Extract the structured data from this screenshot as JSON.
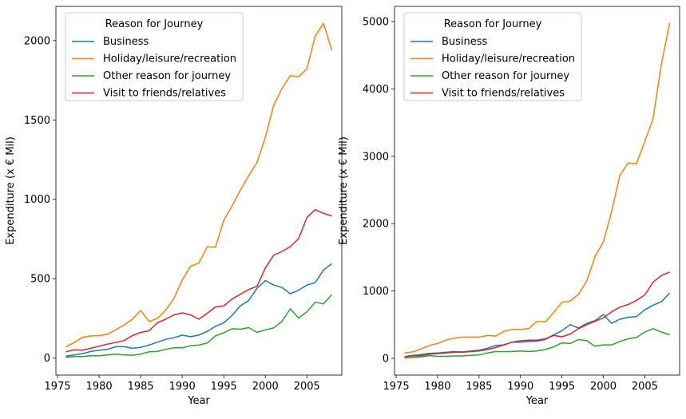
{
  "chart_data": [
    {
      "type": "line",
      "xlabel": "Year",
      "ylabel": "Expenditure (x € Mil)",
      "xlim": [
        1974.8,
        2009.2
      ],
      "ylim": [
        -107,
        2215
      ],
      "xticks": [
        1975,
        1980,
        1985,
        1990,
        1995,
        2000,
        2005
      ],
      "yticks": [
        0,
        500,
        1000,
        1500,
        2000
      ],
      "legend": {
        "title": "Reason for Journey",
        "position": "top-left"
      },
      "x": [
        1976,
        1977,
        1978,
        1979,
        1980,
        1981,
        1982,
        1983,
        1984,
        1985,
        1986,
        1987,
        1988,
        1989,
        1990,
        1991,
        1992,
        1993,
        1994,
        1995,
        1996,
        1997,
        1998,
        1999,
        2000,
        2001,
        2002,
        2003,
        2004,
        2005,
        2006,
        2007,
        2008
      ],
      "series": [
        {
          "name": "Business",
          "color": "#1f77b4",
          "values": [
            12,
            20,
            28,
            42,
            50,
            55,
            72,
            72,
            62,
            68,
            82,
            100,
            118,
            128,
            145,
            135,
            145,
            168,
            200,
            222,
            268,
            330,
            362,
            440,
            488,
            460,
            445,
            405,
            428,
            460,
            475,
            555,
            595
          ]
        },
        {
          "name": "Holiday/leisure/recreation",
          "color": "#ff7f0e",
          "values": [
            70,
            98,
            130,
            140,
            142,
            150,
            178,
            208,
            245,
            300,
            230,
            250,
            302,
            375,
            492,
            578,
            598,
            700,
            698,
            868,
            958,
            1058,
            1148,
            1232,
            1392,
            1592,
            1698,
            1778,
            1772,
            1822,
            2028,
            2108,
            1938
          ]
        },
        {
          "name": "Other reason for journey",
          "color": "#2ca02c",
          "values": [
            5,
            10,
            10,
            15,
            15,
            20,
            25,
            20,
            18,
            25,
            40,
            42,
            55,
            65,
            65,
            78,
            82,
            95,
            140,
            160,
            185,
            182,
            192,
            162,
            178,
            190,
            232,
            310,
            252,
            292,
            352,
            342,
            400
          ]
        },
        {
          "name": "Visit to friends/relatives",
          "color": "#d62728",
          "values": [
            40,
            52,
            50,
            62,
            75,
            88,
            98,
            110,
            142,
            162,
            172,
            222,
            245,
            272,
            285,
            272,
            245,
            282,
            322,
            328,
            372,
            402,
            432,
            452,
            568,
            648,
            672,
            702,
            752,
            885,
            935,
            912,
            895
          ]
        }
      ]
    },
    {
      "type": "line",
      "xlabel": "Year",
      "ylabel": "Expenditure (x € Mil)",
      "xlim": [
        1974.8,
        2009.2
      ],
      "ylim": [
        -249,
        5225
      ],
      "xticks": [
        1975,
        1980,
        1985,
        1990,
        1995,
        2000,
        2005
      ],
      "yticks": [
        0,
        1000,
        2000,
        3000,
        4000,
        5000
      ],
      "legend": {
        "title": "Reason for Journey",
        "position": "top-left"
      },
      "x": [
        1976,
        1977,
        1978,
        1979,
        1980,
        1981,
        1982,
        1983,
        1984,
        1985,
        1986,
        1987,
        1988,
        1989,
        1990,
        1991,
        1992,
        1993,
        1994,
        1995,
        1996,
        1997,
        1998,
        1999,
        2000,
        2001,
        2002,
        2003,
        2004,
        2005,
        2006,
        2007,
        2008
      ],
      "series": [
        {
          "name": "Business",
          "color": "#1f77b4",
          "values": [
            25,
            45,
            55,
            75,
            80,
            90,
            100,
            95,
            110,
            120,
            150,
            190,
            200,
            240,
            240,
            250,
            255,
            280,
            350,
            410,
            500,
            450,
            520,
            560,
            650,
            520,
            580,
            610,
            620,
            720,
            790,
            840,
            970
          ]
        },
        {
          "name": "Holiday/leisure/recreation",
          "color": "#ff7f0e",
          "values": [
            80,
            95,
            140,
            190,
            220,
            270,
            300,
            315,
            315,
            315,
            340,
            330,
            400,
            430,
            430,
            440,
            550,
            540,
            680,
            830,
            850,
            950,
            1150,
            1510,
            1730,
            2180,
            2720,
            2900,
            2890,
            3220,
            3560,
            4370,
            4980
          ]
        },
        {
          "name": "Other reason for journey",
          "color": "#2ca02c",
          "values": [
            5,
            15,
            20,
            40,
            30,
            30,
            35,
            35,
            45,
            50,
            80,
            100,
            100,
            100,
            110,
            100,
            110,
            130,
            170,
            230,
            220,
            280,
            260,
            180,
            200,
            200,
            250,
            290,
            310,
            390,
            440,
            390,
            350
          ]
        },
        {
          "name": "Visit to friends/relatives",
          "color": "#d62728",
          "values": [
            25,
            35,
            40,
            60,
            70,
            80,
            90,
            90,
            100,
            110,
            130,
            160,
            200,
            240,
            260,
            270,
            270,
            290,
            340,
            320,
            360,
            440,
            500,
            550,
            600,
            690,
            760,
            800,
            860,
            940,
            1130,
            1230,
            1280
          ]
        }
      ]
    }
  ]
}
